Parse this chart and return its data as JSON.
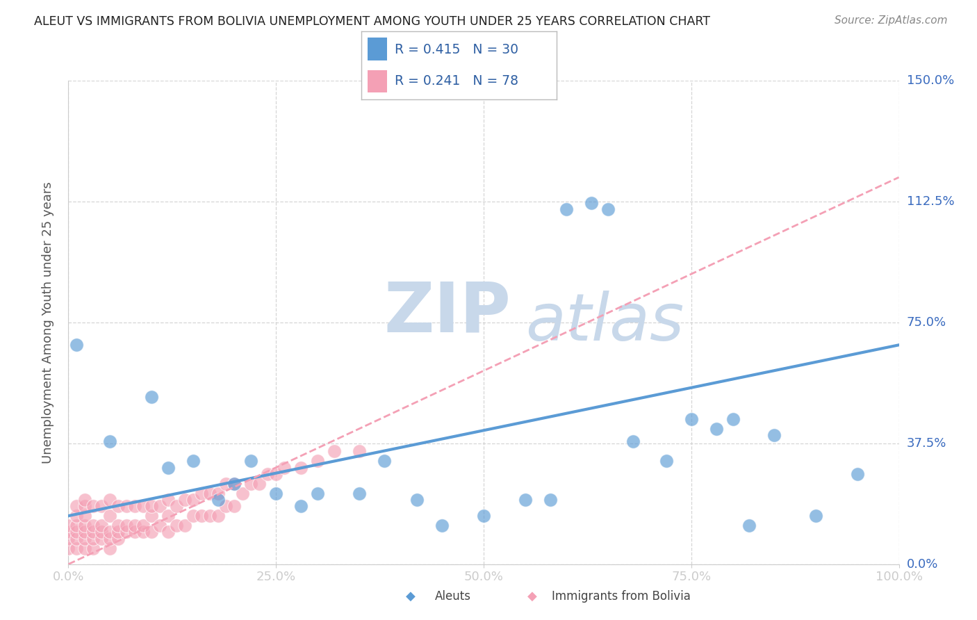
{
  "title": "ALEUT VS IMMIGRANTS FROM BOLIVIA UNEMPLOYMENT AMONG YOUTH UNDER 25 YEARS CORRELATION CHART",
  "source": "Source: ZipAtlas.com",
  "ylabel": "Unemployment Among Youth under 25 years",
  "xlim": [
    0,
    1.0
  ],
  "ylim": [
    0,
    1.5
  ],
  "yticks": [
    0.0,
    0.375,
    0.75,
    1.125,
    1.5
  ],
  "ytick_labels": [
    "0.0%",
    "37.5%",
    "75.0%",
    "112.5%",
    "150.0%"
  ],
  "xticks": [
    0.0,
    0.25,
    0.5,
    0.75,
    1.0
  ],
  "xtick_labels": [
    "0.0%",
    "25.0%",
    "50.0%",
    "75.0%",
    "100.0%"
  ],
  "aleut_color": "#5b9bd5",
  "bolivia_color": "#f4a0b5",
  "aleut_R": 0.415,
  "aleut_N": 30,
  "bolivia_R": 0.241,
  "bolivia_N": 78,
  "legend_text_color": "#2e5fa3",
  "tick_label_color": "#3a6bbf",
  "aleut_points_x": [
    0.01,
    0.05,
    0.1,
    0.12,
    0.15,
    0.18,
    0.2,
    0.22,
    0.25,
    0.28,
    0.3,
    0.35,
    0.38,
    0.42,
    0.45,
    0.5,
    0.55,
    0.58,
    0.6,
    0.63,
    0.65,
    0.68,
    0.72,
    0.75,
    0.78,
    0.8,
    0.82,
    0.85,
    0.9,
    0.95
  ],
  "aleut_points_y": [
    0.68,
    0.38,
    0.52,
    0.3,
    0.32,
    0.2,
    0.25,
    0.32,
    0.22,
    0.18,
    0.22,
    0.22,
    0.32,
    0.2,
    0.12,
    0.15,
    0.2,
    0.2,
    1.1,
    1.12,
    1.1,
    0.38,
    0.32,
    0.45,
    0.42,
    0.45,
    0.12,
    0.4,
    0.15,
    0.28
  ],
  "bolivia_points_x": [
    0.0,
    0.0,
    0.0,
    0.0,
    0.01,
    0.01,
    0.01,
    0.01,
    0.01,
    0.01,
    0.02,
    0.02,
    0.02,
    0.02,
    0.02,
    0.02,
    0.02,
    0.03,
    0.03,
    0.03,
    0.03,
    0.03,
    0.04,
    0.04,
    0.04,
    0.04,
    0.05,
    0.05,
    0.05,
    0.05,
    0.05,
    0.06,
    0.06,
    0.06,
    0.06,
    0.07,
    0.07,
    0.07,
    0.08,
    0.08,
    0.08,
    0.09,
    0.09,
    0.09,
    0.1,
    0.1,
    0.1,
    0.11,
    0.11,
    0.12,
    0.12,
    0.12,
    0.13,
    0.13,
    0.14,
    0.14,
    0.15,
    0.15,
    0.16,
    0.16,
    0.17,
    0.17,
    0.18,
    0.18,
    0.19,
    0.19,
    0.2,
    0.2,
    0.21,
    0.22,
    0.23,
    0.24,
    0.25,
    0.26,
    0.28,
    0.3,
    0.32,
    0.35
  ],
  "bolivia_points_y": [
    0.05,
    0.08,
    0.1,
    0.12,
    0.05,
    0.08,
    0.1,
    0.12,
    0.15,
    0.18,
    0.05,
    0.08,
    0.1,
    0.12,
    0.15,
    0.18,
    0.2,
    0.05,
    0.08,
    0.1,
    0.12,
    0.18,
    0.08,
    0.1,
    0.12,
    0.18,
    0.05,
    0.08,
    0.1,
    0.15,
    0.2,
    0.08,
    0.1,
    0.12,
    0.18,
    0.1,
    0.12,
    0.18,
    0.1,
    0.12,
    0.18,
    0.1,
    0.12,
    0.18,
    0.1,
    0.15,
    0.18,
    0.12,
    0.18,
    0.1,
    0.15,
    0.2,
    0.12,
    0.18,
    0.12,
    0.2,
    0.15,
    0.2,
    0.15,
    0.22,
    0.15,
    0.22,
    0.15,
    0.22,
    0.18,
    0.25,
    0.18,
    0.25,
    0.22,
    0.25,
    0.25,
    0.28,
    0.28,
    0.3,
    0.3,
    0.32,
    0.35,
    0.35
  ],
  "background_color": "#ffffff",
  "grid_color": "#cccccc",
  "watermark_zip": "ZIP",
  "watermark_atlas": "atlas",
  "watermark_color": "#c8d8ea"
}
